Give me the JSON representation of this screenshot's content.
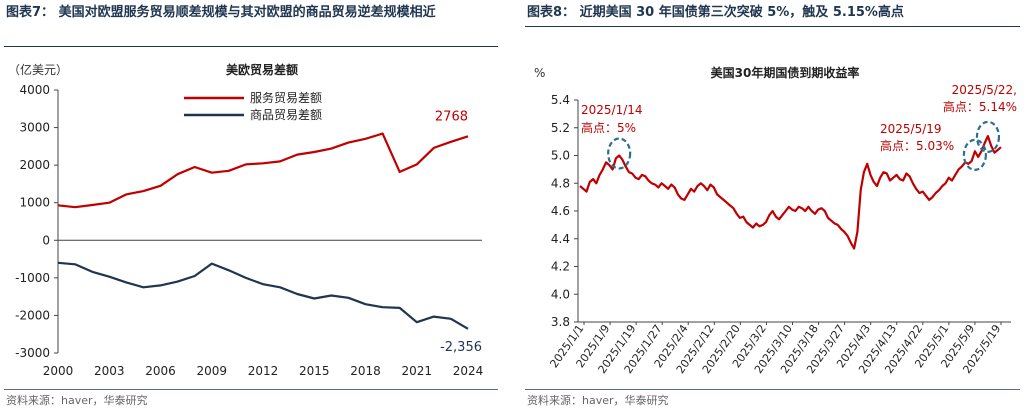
{
  "left_panel": {
    "title": "图表7：  美国对欧盟服务贸易顺差规模与其对欧盟的商品贸易逆差规模相近",
    "source": "资料来源：haver，华泰研究"
  },
  "right_panel": {
    "title": "图表8：  近期美国 30 年国债第三次突破 5%，触及 5.15%高点",
    "source": "资料来源：haver，华泰研究"
  },
  "colors": {
    "red": "#c00000",
    "navy": "#1f3550",
    "highlight": "#2a6f8f"
  },
  "chart_data": [
    {
      "type": "line",
      "title": "美欧贸易差额",
      "unit_label": "（亿美元）",
      "xlabel": "",
      "ylabel": "",
      "x": [
        2000,
        2001,
        2002,
        2003,
        2004,
        2005,
        2006,
        2007,
        2008,
        2009,
        2010,
        2011,
        2012,
        2013,
        2014,
        2015,
        2016,
        2017,
        2018,
        2019,
        2020,
        2021,
        2022,
        2023,
        2024
      ],
      "x_ticks": [
        2000,
        2003,
        2006,
        2009,
        2012,
        2015,
        2018,
        2021,
        2024
      ],
      "ylim": [
        -3000,
        4000
      ],
      "y_ticks": [
        -3000,
        -2000,
        -1000,
        0,
        1000,
        2000,
        3000,
        4000
      ],
      "grid": false,
      "legend_position": "top-left",
      "series": [
        {
          "name": "服务贸易差额",
          "color": "#c00000",
          "values": [
            930,
            880,
            940,
            1000,
            1220,
            1310,
            1450,
            1760,
            1950,
            1800,
            1850,
            2020,
            2050,
            2100,
            2280,
            2350,
            2440,
            2600,
            2700,
            2840,
            1820,
            2020,
            2460,
            2620,
            2768
          ],
          "end_label": "2768"
        },
        {
          "name": "商品贸易差额",
          "color": "#1f3550",
          "values": [
            -600,
            -640,
            -840,
            -970,
            -1120,
            -1250,
            -1200,
            -1100,
            -950,
            -620,
            -800,
            -1000,
            -1170,
            -1250,
            -1430,
            -1550,
            -1470,
            -1530,
            -1700,
            -1780,
            -1800,
            -2180,
            -2030,
            -2090,
            -2356
          ],
          "end_label": "-2,356"
        }
      ]
    },
    {
      "type": "line",
      "title": "美国30年期国债到期收益率",
      "unit_label": "%",
      "xlabel": "",
      "ylabel": "",
      "x_ticks": [
        "2025/1/1",
        "2025/1/9",
        "2025/1/19",
        "2025/1/27",
        "2025/2/4",
        "2025/2/12",
        "2025/2/20",
        "2025/3/2",
        "2025/3/10",
        "2025/3/18",
        "2025/3/27",
        "2025/4/3",
        "2025/4/13",
        "2025/4/22",
        "2025/5/1",
        "2025/5/9",
        "2025/5/19"
      ],
      "ylim": [
        3.8,
        5.4
      ],
      "y_ticks": [
        "3.8",
        "4.0",
        "4.2",
        "4.4",
        "4.6",
        "4.8",
        "5.0",
        "5.2",
        "5.4"
      ],
      "grid": false,
      "series": [
        {
          "name": "",
          "color": "#c00000",
          "values": [
            4.78,
            4.76,
            4.74,
            4.81,
            4.83,
            4.8,
            4.86,
            4.9,
            4.95,
            4.93,
            4.9,
            4.98,
            5.0,
            4.97,
            4.92,
            4.88,
            4.87,
            4.84,
            4.83,
            4.86,
            4.85,
            4.82,
            4.8,
            4.79,
            4.77,
            4.8,
            4.78,
            4.76,
            4.79,
            4.77,
            4.72,
            4.69,
            4.68,
            4.72,
            4.76,
            4.74,
            4.78,
            4.8,
            4.78,
            4.75,
            4.79,
            4.77,
            4.72,
            4.7,
            4.68,
            4.66,
            4.64,
            4.62,
            4.58,
            4.55,
            4.56,
            4.52,
            4.5,
            4.48,
            4.51,
            4.49,
            4.5,
            4.52,
            4.57,
            4.6,
            4.56,
            4.54,
            4.57,
            4.6,
            4.63,
            4.61,
            4.6,
            4.63,
            4.62,
            4.6,
            4.63,
            4.6,
            4.58,
            4.61,
            4.62,
            4.6,
            4.55,
            4.53,
            4.51,
            4.5,
            4.47,
            4.45,
            4.42,
            4.37,
            4.33,
            4.45,
            4.75,
            4.88,
            4.94,
            4.86,
            4.81,
            4.78,
            4.84,
            4.88,
            4.87,
            4.82,
            4.84,
            4.86,
            4.83,
            4.82,
            4.87,
            4.85,
            4.8,
            4.76,
            4.73,
            4.74,
            4.71,
            4.68,
            4.7,
            4.73,
            4.75,
            4.78,
            4.8,
            4.84,
            4.82,
            4.86,
            4.9,
            4.92,
            4.95,
            4.94,
            4.96,
            5.03,
            4.99,
            5.03,
            5.09,
            5.14,
            5.07,
            5.02,
            5.04,
            5.06
          ]
        }
      ],
      "annotations": [
        {
          "date": "2025/1/14",
          "text": "高点：5%"
        },
        {
          "date": "2025/5/19",
          "text": "高点：5.03%"
        },
        {
          "date": "2025/5/22,",
          "text": "高点：5.14%"
        }
      ]
    }
  ]
}
